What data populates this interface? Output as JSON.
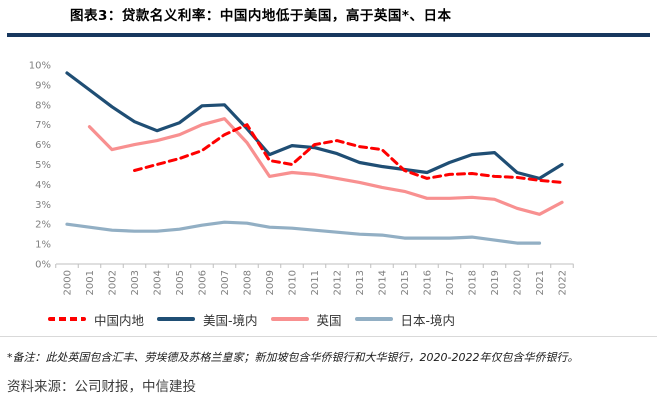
{
  "header": {
    "title": "图表3：贷款名义利率：中国内地低于美国，高于英国*、日本"
  },
  "chart_data": {
    "type": "line",
    "title": "贷款名义利率",
    "x": [
      2000,
      2001,
      2002,
      2003,
      2004,
      2005,
      2006,
      2007,
      2008,
      2009,
      2010,
      2011,
      2012,
      2013,
      2014,
      2015,
      2016,
      2017,
      2018,
      2019,
      2020,
      2021,
      2022
    ],
    "xticklabels": [
      "2000",
      "2001",
      "2002",
      "2003",
      "2004",
      "2005",
      "2006",
      "2007",
      "2008",
      "2009",
      "2010",
      "2011",
      "2012",
      "2013",
      "2014",
      "2015",
      "2016",
      "2017",
      "2018",
      "2019",
      "2020",
      "2021",
      "2022"
    ],
    "yticks": [
      "0%",
      "1%",
      "2%",
      "3%",
      "4%",
      "5%",
      "6%",
      "7%",
      "8%",
      "9%",
      "10%"
    ],
    "ylim": [
      0,
      10
    ],
    "grid": false,
    "legend_position": "bottom",
    "series": [
      {
        "name": "日本-境内",
        "color": "#92AFC4",
        "dashed": false,
        "values": [
          2.0,
          1.85,
          1.7,
          1.65,
          1.65,
          1.75,
          1.95,
          2.1,
          2.05,
          1.85,
          1.8,
          1.7,
          1.6,
          1.5,
          1.45,
          1.3,
          1.3,
          1.3,
          1.35,
          1.2,
          1.05,
          1.05,
          null
        ]
      },
      {
        "name": "英国",
        "color": "#F89090",
        "dashed": false,
        "values": [
          null,
          6.9,
          5.75,
          6.0,
          6.2,
          6.5,
          7.0,
          7.3,
          6.1,
          4.4,
          4.6,
          4.5,
          4.3,
          4.1,
          3.85,
          3.65,
          3.3,
          3.3,
          3.35,
          3.25,
          2.8,
          2.5,
          3.1
        ]
      },
      {
        "name": "美国-境内",
        "color": "#1F4E74",
        "dashed": false,
        "values": [
          9.6,
          8.75,
          7.9,
          7.15,
          6.7,
          7.1,
          7.95,
          8.0,
          6.8,
          5.5,
          5.95,
          5.85,
          5.55,
          5.1,
          4.9,
          4.75,
          4.6,
          5.1,
          5.5,
          5.6,
          4.6,
          4.3,
          5.0
        ]
      },
      {
        "name": "中国内地",
        "color": "#FE0000",
        "dashed": true,
        "values": [
          null,
          null,
          null,
          4.7,
          5.0,
          5.3,
          5.7,
          6.5,
          7.0,
          5.2,
          5.0,
          6.0,
          6.2,
          5.9,
          5.75,
          4.7,
          4.3,
          4.5,
          4.55,
          4.4,
          4.35,
          4.2,
          4.1
        ]
      }
    ],
    "legend_order": [
      3,
      2,
      1,
      0
    ]
  },
  "style": {
    "rule_color": "#17375E",
    "axis_color": "#BFBFBF",
    "tick_label_color": "#808080"
  },
  "footnote": {
    "note": "*备注：此处英国包含汇丰、劳埃德及苏格兰皇家；新加坡包含华侨银行和大华银行，2020-2022年仅包含华侨银行。"
  },
  "source": {
    "label": "资料来源：公司财报，中信建投"
  }
}
